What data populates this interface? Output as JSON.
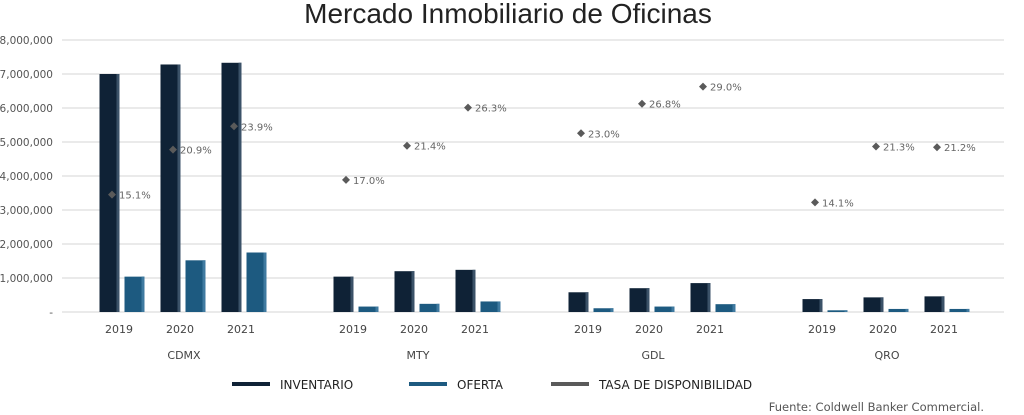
{
  "chart_data": {
    "type": "bar",
    "title": "Mercado Inmobiliario de Oficinas",
    "groups": [
      "CDMX",
      "MTY",
      "GDL",
      "QRO"
    ],
    "years": [
      "2019",
      "2020",
      "2021"
    ],
    "series": [
      {
        "name": "INVENTARIO",
        "color": "#0f2236",
        "values": [
          7000000,
          7280000,
          7330000,
          1040000,
          1200000,
          1240000,
          580000,
          700000,
          850000,
          380000,
          430000,
          460000
        ]
      },
      {
        "name": "OFERTA",
        "color": "#1d5a80",
        "values": [
          1040000,
          1520000,
          1750000,
          160000,
          240000,
          310000,
          110000,
          160000,
          230000,
          50000,
          90000,
          90000
        ]
      },
      {
        "name": "TASA DE DISPONIBILIDAD",
        "color": "#5a5a5a",
        "values": [
          15.1,
          20.9,
          23.9,
          17.0,
          21.4,
          26.3,
          23.0,
          26.8,
          29.0,
          14.1,
          21.3,
          21.2
        ],
        "labels": [
          "15.1%",
          "20.9%",
          "23.9%",
          "17.0%",
          "21.4%",
          "26.3%",
          "23.0%",
          "26.8%",
          "29.0%",
          "14.1%",
          "21.3%",
          "21.2%"
        ]
      }
    ],
    "y_ticks": [
      "-",
      "1,000,000",
      "2,000,000",
      "3,000,000",
      "4,000,000",
      "5,000,000",
      "6,000,000",
      "7,000,000",
      "8,000,000"
    ],
    "ylim": [
      0,
      8000000
    ],
    "secondary_ylim": [
      0,
      35
    ],
    "grid": true,
    "legend_position": "bottom",
    "source": "Fuente: Coldwell Banker Commercial."
  }
}
